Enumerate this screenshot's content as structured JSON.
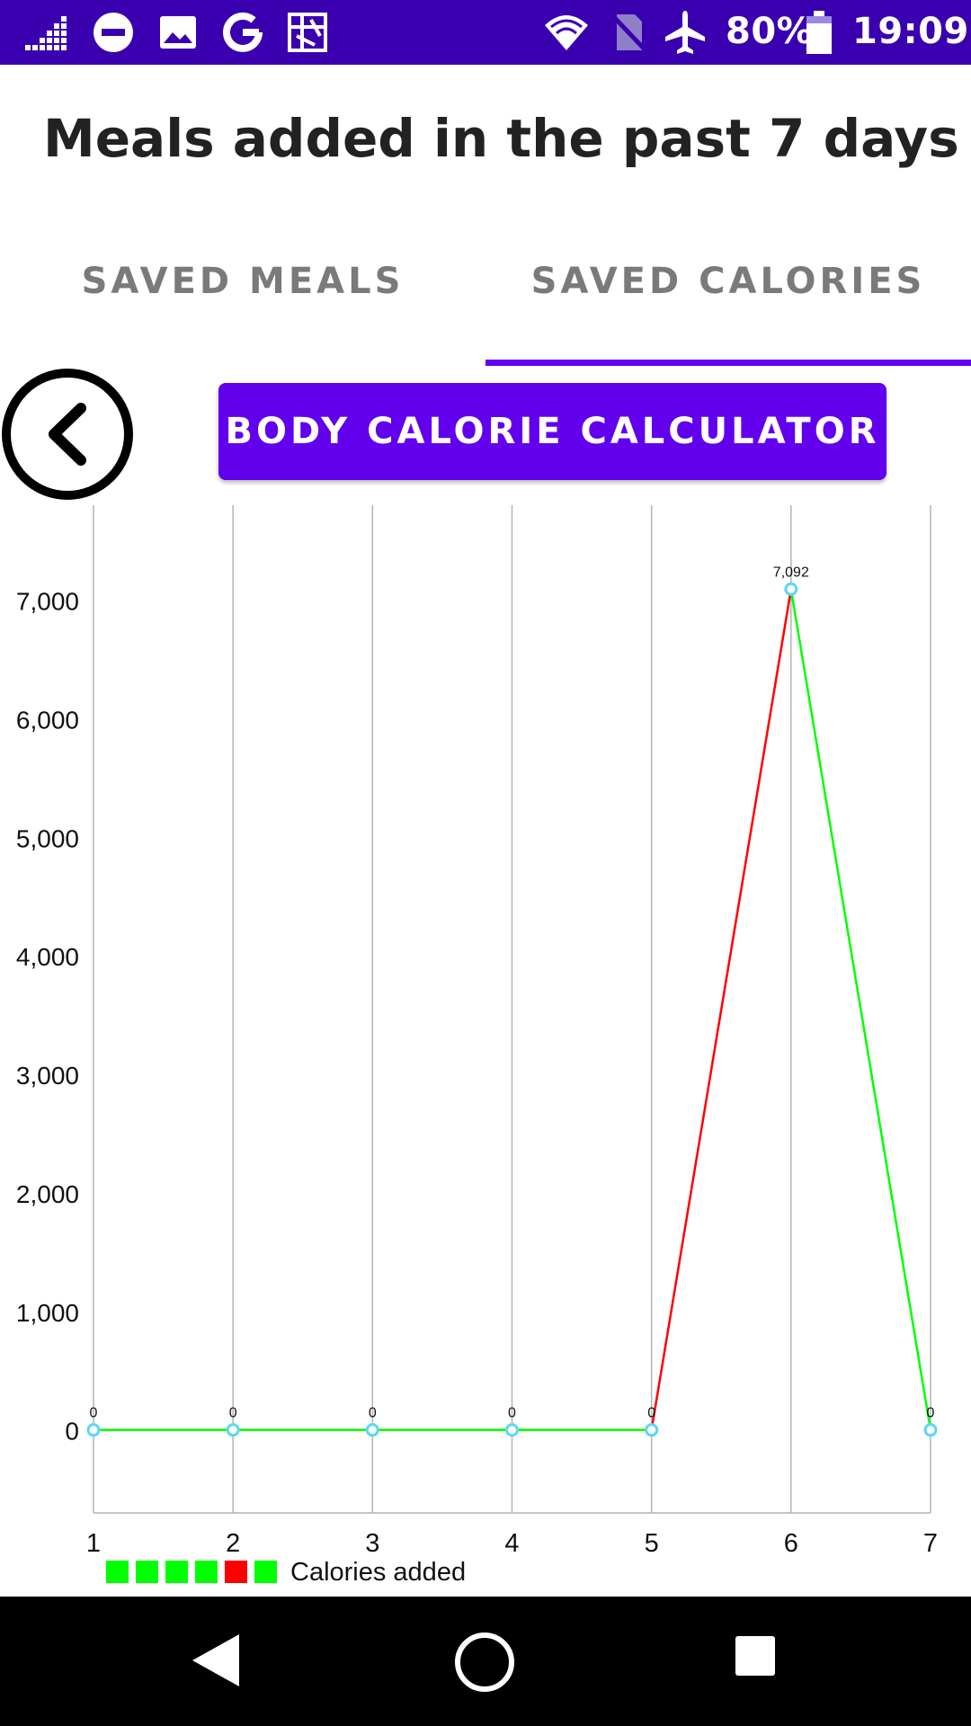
{
  "status_bar": {
    "battery_text": "80%",
    "time": "19:09",
    "icons": [
      "signal-bars-icon",
      "do-not-disturb-icon",
      "image-icon",
      "google-icon",
      "app-icon",
      "wifi-icon",
      "no-sim-icon",
      "airplane-icon",
      "battery-icon"
    ],
    "background_color": "#3a00b0"
  },
  "header": {
    "title": "Meals added in the past 7 days"
  },
  "tabs": [
    {
      "label": "SAVED MEALS",
      "selected": false
    },
    {
      "label": "SAVED CALORIES",
      "selected": true
    }
  ],
  "actions": {
    "back_icon": "chevron-left-circle-icon",
    "calculator_label": "BODY CALORIE CALCULATOR"
  },
  "colors": {
    "accent": "#6200ee",
    "line_normal": "#00ff00",
    "line_high": "#ff0000",
    "point": "#5ad8f2"
  },
  "chart_data": {
    "type": "line",
    "x": [
      1,
      2,
      3,
      4,
      5,
      6,
      7
    ],
    "x_tick_labels": [
      "1",
      "2",
      "3",
      "4",
      "5",
      "6",
      "7"
    ],
    "y_tick_labels": [
      "0",
      "1,000",
      "2,000",
      "3,000",
      "4,000",
      "5,000",
      "6,000",
      "7,000"
    ],
    "y_ticks": [
      0,
      1000,
      2000,
      3000,
      4000,
      5000,
      6000,
      7000
    ],
    "ylim": [
      -700,
      7800
    ],
    "grid": "vertical",
    "series": [
      {
        "name": "Calories added",
        "values": [
          0,
          0,
          0,
          0,
          0,
          7092,
          0
        ],
        "value_labels": [
          "0",
          "0",
          "0",
          "0",
          "0",
          "7,092",
          "0"
        ],
        "segment_colors": [
          "#00ff00",
          "#00ff00",
          "#00ff00",
          "#00ff00",
          "#ff0000",
          "#00ff00"
        ]
      }
    ],
    "legend": {
      "label": "Calories added",
      "swatch_colors": [
        "#00ff00",
        "#00ff00",
        "#00ff00",
        "#00ff00",
        "#ff0000",
        "#00ff00"
      ],
      "position": "bottom-left"
    }
  },
  "nav_bar": {
    "buttons": [
      "back-triangle-icon",
      "home-circle-icon",
      "recents-square-icon"
    ]
  }
}
